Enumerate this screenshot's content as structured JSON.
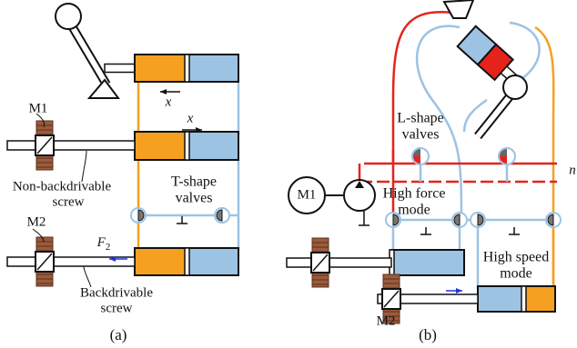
{
  "panel_a": {
    "label": "(a)",
    "motor_1": "M1",
    "motor_2": "M2",
    "x_top": "x",
    "x_mid": "x",
    "screw_1": [
      "Non-backdrivable",
      "screw"
    ],
    "screw_2": [
      "Backdrivable",
      "screw"
    ],
    "valves": [
      "T-shape",
      "valves"
    ],
    "force": {
      "main": "F",
      "sub": "2"
    }
  },
  "panel_b": {
    "label": "(b)",
    "motor_1": "M1",
    "motor_2": "M2",
    "valves": [
      "L-shape",
      "valves"
    ],
    "n": "n",
    "high_force": [
      "High force",
      "mode"
    ],
    "high_speed": [
      "High speed",
      "mode"
    ]
  }
}
